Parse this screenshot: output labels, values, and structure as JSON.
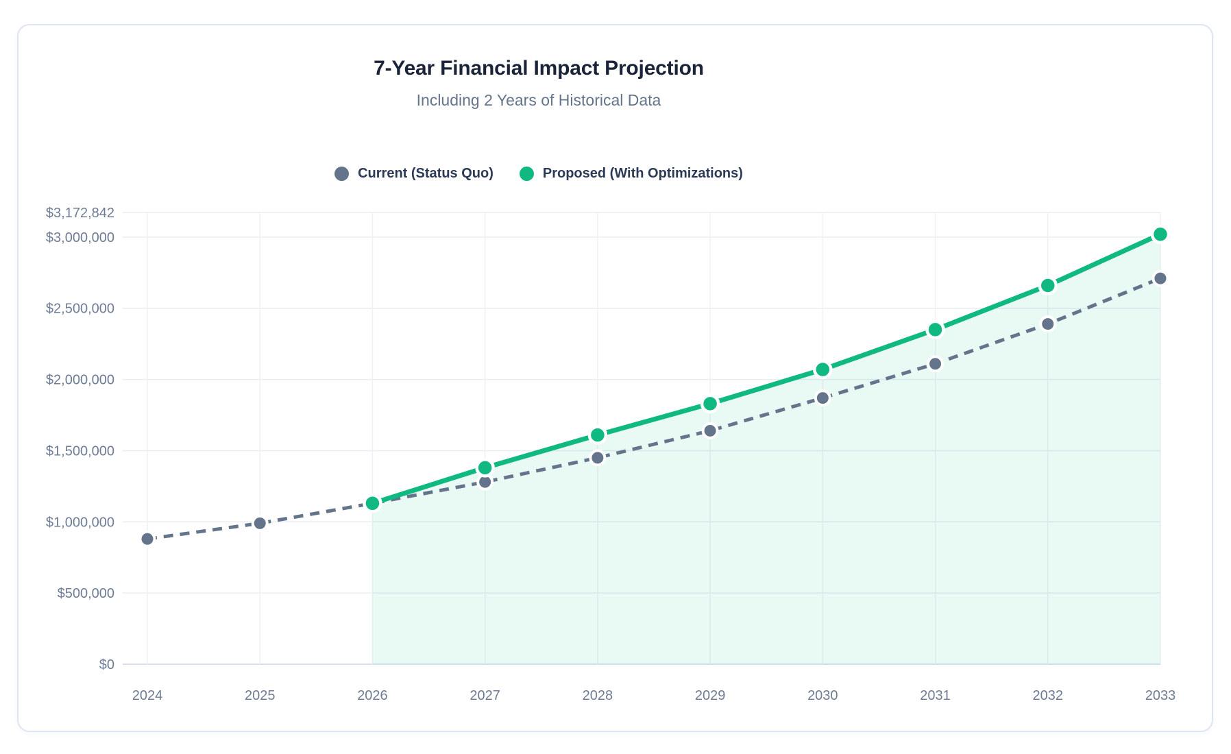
{
  "header": {
    "title": "7-Year Financial Impact Projection",
    "subtitle": "Including 2 Years of Historical Data"
  },
  "chart_data": {
    "type": "line",
    "title": "7-Year Financial Impact Projection",
    "subtitle": "Including 2 Years of Historical Data",
    "categories": [
      "2024",
      "2025",
      "2026",
      "2027",
      "2028",
      "2029",
      "2030",
      "2031",
      "2032",
      "2033"
    ],
    "series": [
      {
        "name": "Current (Status Quo)",
        "color": "#64748b",
        "style": "dashed",
        "area": false,
        "values": [
          880000,
          990000,
          1130000,
          1280000,
          1450000,
          1640000,
          1870000,
          2110000,
          2390000,
          2710000
        ]
      },
      {
        "name": "Proposed (With Optimizations)",
        "color": "#10b981",
        "style": "solid",
        "area": true,
        "area_fill": "rgba(16,185,129,0.09)",
        "values": [
          null,
          null,
          1130000,
          1380000,
          1610000,
          1830000,
          2070000,
          2350000,
          2660000,
          3020000
        ]
      }
    ],
    "ylim": [
      0,
      3172842
    ],
    "y_ticks": [
      {
        "label": "$3,172,842",
        "value": 3172842
      },
      {
        "label": "$3,000,000",
        "value": 3000000
      },
      {
        "label": "$2,500,000",
        "value": 2500000
      },
      {
        "label": "$2,000,000",
        "value": 2000000
      },
      {
        "label": "$1,500,000",
        "value": 1500000
      },
      {
        "label": "$1,000,000",
        "value": 1000000
      },
      {
        "label": "$500,000",
        "value": 500000
      },
      {
        "label": "$0",
        "value": 0
      }
    ],
    "grid": true,
    "legend_position": "top"
  },
  "colors": {
    "current": "#64748b",
    "proposed": "#10b981",
    "area_fill": "rgba(16,185,129,0.09)",
    "grid": "#e9edf3",
    "axis_line": "#d8dee8",
    "tick_text": "#6e7c96",
    "title_text": "#1a2338",
    "subtitle_text": "#64748b",
    "legend_text": "#2b3a57",
    "card_border": "#dde4f3"
  }
}
